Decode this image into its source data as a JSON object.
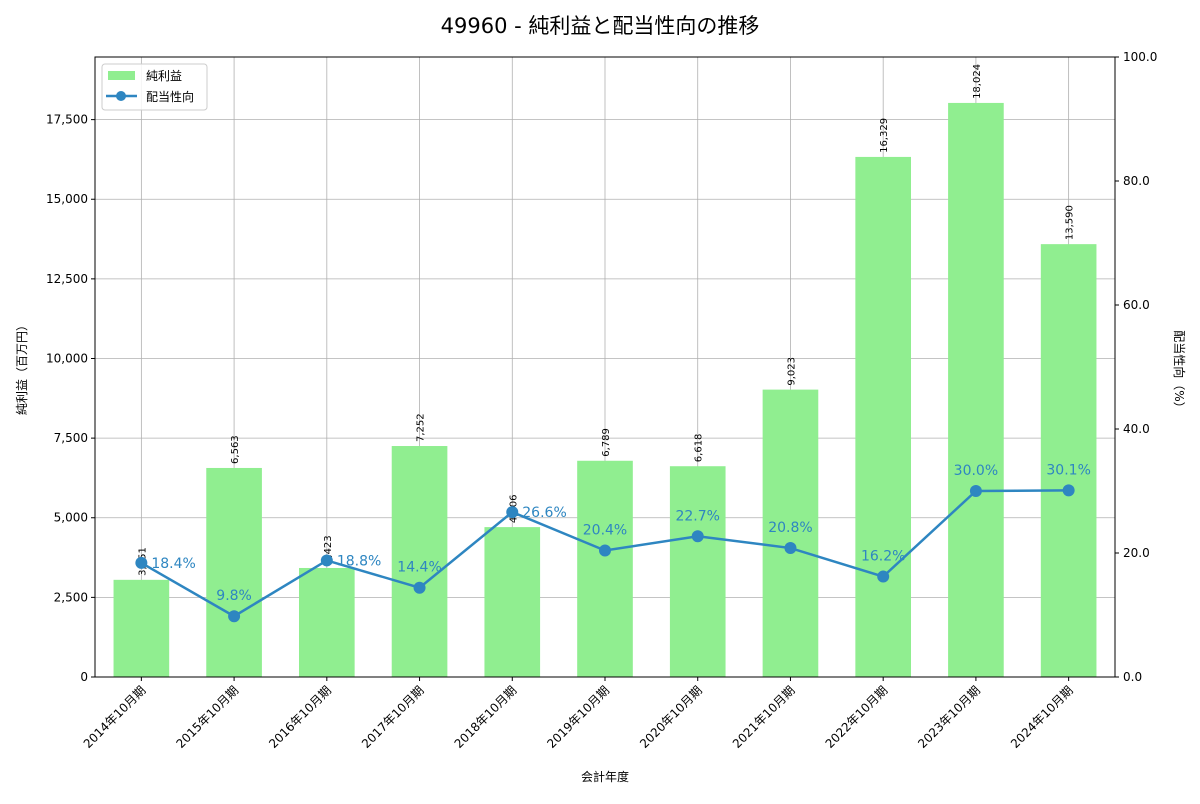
{
  "chart_data": {
    "type": "bar+line",
    "title": "49960 - 純利益と配当性向の推移",
    "xlabel": "会計年度",
    "ylabel_left": "純利益（百万円）",
    "ylabel_right": "配当性向（%）",
    "categories": [
      "2014年10月期",
      "2015年10月期",
      "2016年10月期",
      "2017年10月期",
      "2018年10月期",
      "2019年10月期",
      "2020年10月期",
      "2021年10月期",
      "2022年10月期",
      "2023年10月期",
      "2024年10月期"
    ],
    "series": [
      {
        "name": "純利益",
        "type": "bar",
        "axis": "left",
        "color": "#90ee90",
        "values": [
          3051,
          6563,
          3423,
          7252,
          4706,
          6789,
          6618,
          9023,
          16329,
          18024,
          13590
        ],
        "labels": [
          "3,051",
          "6,563",
          "3,423",
          "7,252",
          "4,706",
          "6,789",
          "6,618",
          "9,023",
          "16,329",
          "18,024",
          "13,590"
        ]
      },
      {
        "name": "配当性向",
        "type": "line",
        "axis": "right",
        "color": "#2e86c1",
        "values": [
          18.4,
          9.8,
          18.8,
          14.4,
          26.6,
          20.4,
          22.7,
          20.8,
          16.2,
          30.0,
          30.1
        ],
        "labels": [
          "18.4%",
          "9.8%",
          "18.8%",
          "14.4%",
          "26.6%",
          "20.4%",
          "22.7%",
          "20.8%",
          "16.2%",
          "30.0%",
          "30.1%"
        ]
      }
    ],
    "ylim_left": [
      0,
      19466
    ],
    "yticks_left": [
      0,
      2500,
      5000,
      7500,
      10000,
      12500,
      15000,
      17500
    ],
    "ytick_labels_left": [
      "0",
      "2,500",
      "5,000",
      "7,500",
      "10,000",
      "12,500",
      "15,000",
      "17,500"
    ],
    "ylim_right": [
      0,
      100
    ],
    "yticks_right": [
      0,
      20,
      40,
      60,
      80,
      100
    ],
    "ytick_labels_right": [
      "0.0",
      "20.0",
      "40.0",
      "60.0",
      "80.0",
      "100.0"
    ],
    "grid": true,
    "legend": "top-left"
  }
}
